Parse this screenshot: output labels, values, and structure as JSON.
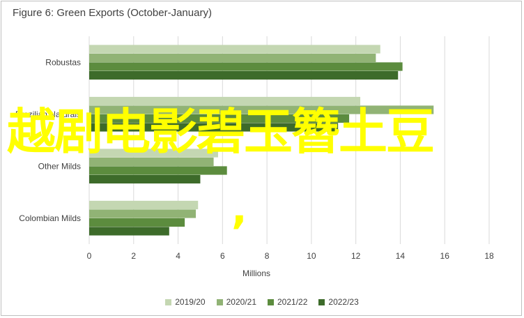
{
  "chart_data": {
    "type": "bar",
    "orientation": "horizontal",
    "title": "Figure 6: Green Exports (October-January)",
    "xlabel": "Millions",
    "ylabel": "",
    "xlim": [
      0,
      18
    ],
    "xticks": [
      0,
      2,
      4,
      6,
      8,
      10,
      12,
      14,
      16,
      18
    ],
    "grid": true,
    "legend_position": "bottom",
    "categories": [
      "Robustas",
      "Brazilian Naturals",
      "Other Milds",
      "Colombian Milds"
    ],
    "series": [
      {
        "name": "2019/20",
        "color": "#c4d7b2",
        "values": [
          13.1,
          12.2,
          5.8,
          4.9
        ]
      },
      {
        "name": "2020/21",
        "color": "#91b375",
        "values": [
          12.9,
          15.5,
          5.6,
          4.8
        ]
      },
      {
        "name": "2021/22",
        "color": "#5c8c3e",
        "values": [
          14.1,
          11.7,
          6.2,
          4.3
        ]
      },
      {
        "name": "2022/23",
        "color": "#3d6b2a",
        "values": [
          13.9,
          11.2,
          5.0,
          3.6
        ]
      }
    ]
  },
  "overlay": {
    "text": "越剧电影碧玉簪土豆",
    "comma": ",",
    "color": "#ffff00"
  }
}
